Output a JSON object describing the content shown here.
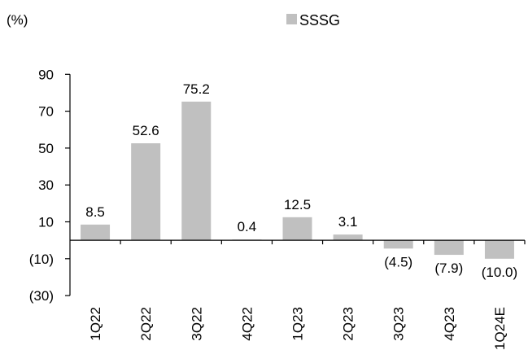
{
  "chart_data": {
    "type": "bar",
    "unit_label": "(%)",
    "legend": "SSSG",
    "categories": [
      "1Q22",
      "2Q22",
      "3Q22",
      "4Q22",
      "1Q23",
      "2Q23",
      "3Q23",
      "4Q23",
      "1Q24E"
    ],
    "series": [
      {
        "name": "SSSG",
        "values": [
          8.5,
          52.6,
          75.2,
          0.4,
          12.5,
          3.1,
          -4.5,
          -7.9,
          -10.0
        ],
        "labels": [
          "8.5",
          "52.6",
          "75.2",
          "0.4",
          "12.5",
          "3.1",
          "(4.5)",
          "(7.9)",
          "(10.0)"
        ]
      }
    ],
    "y_ticks": [
      90,
      70,
      50,
      30,
      10,
      -10,
      -30
    ],
    "y_tick_labels": [
      "90",
      "70",
      "50",
      "30",
      "10",
      "(10)",
      "(30)"
    ],
    "ylim": [
      -30,
      90
    ],
    "colors": {
      "bar": "#c0c0c0",
      "axis": "#000000"
    },
    "grid": false,
    "legend_position": "top-center"
  }
}
